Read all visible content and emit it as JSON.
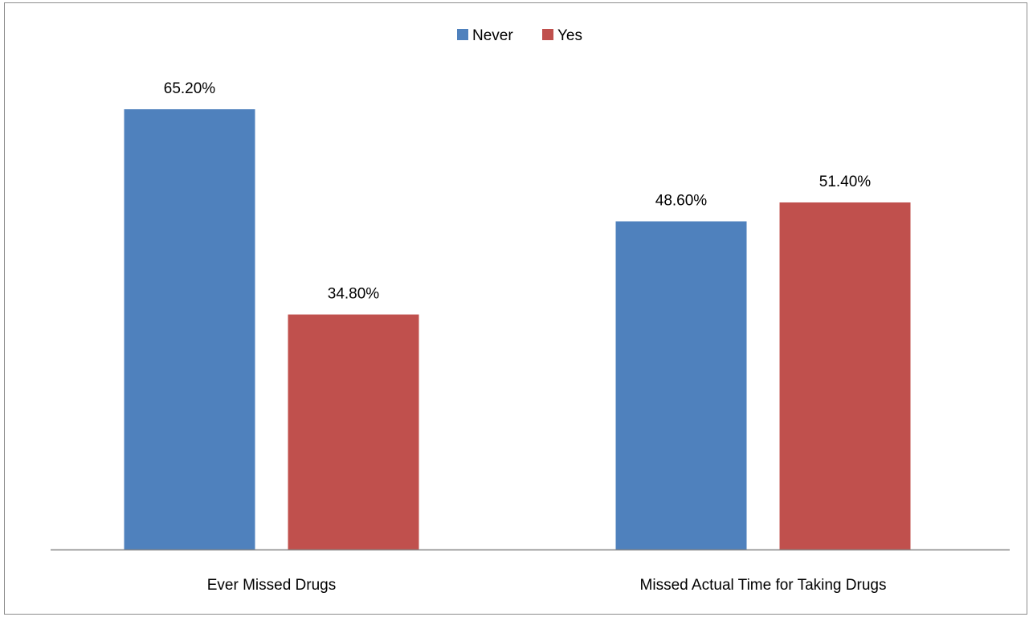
{
  "chart_data": {
    "type": "bar",
    "categories": [
      "Ever Missed Drugs",
      "Missed Actual Time for Taking Drugs"
    ],
    "series": [
      {
        "name": "Never",
        "values": [
          65.2,
          48.6
        ],
        "color": "#4F81BD",
        "labels": [
          "65.20%",
          "48.60%"
        ]
      },
      {
        "name": "Yes",
        "values": [
          34.8,
          51.4
        ],
        "color": "#C0504D",
        "labels": [
          "34.80%",
          "51.40%"
        ]
      }
    ],
    "unit": "%",
    "ylim": [
      0,
      75
    ],
    "grid": false,
    "legend_position": "top"
  }
}
